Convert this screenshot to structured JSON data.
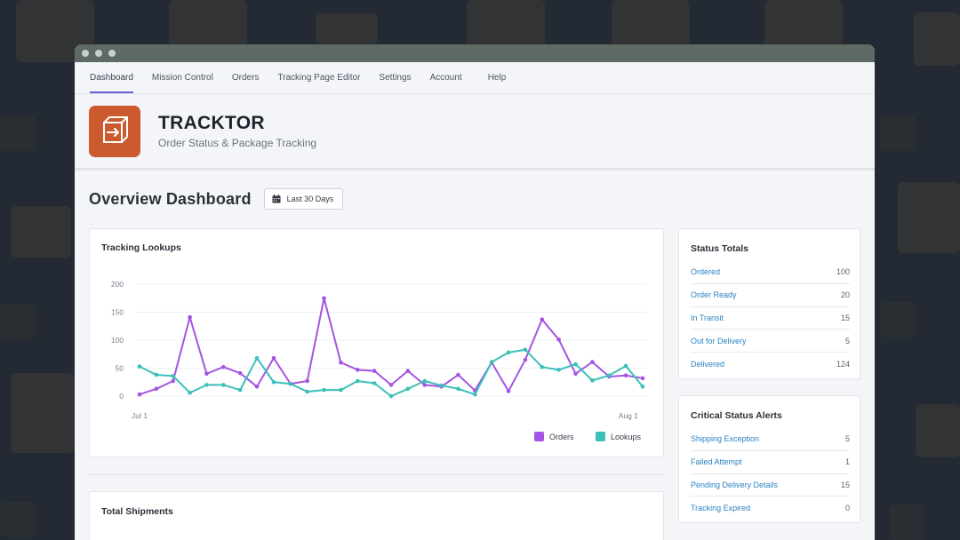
{
  "nav": {
    "items": [
      "Dashboard",
      "Mission Control",
      "Orders",
      "Tracking Page Editor",
      "Settings",
      "Account",
      "Help"
    ],
    "active": "Dashboard"
  },
  "brand": {
    "title": "TRACKTOR",
    "subtitle": "Order Status & Package Tracking",
    "logo_color": "#cc5a2f"
  },
  "overview": {
    "title": "Overview Dashboard",
    "date_range": "Last 30 Days",
    "date_icon": "calendar-icon"
  },
  "tracking_card": {
    "title": "Tracking Lookups"
  },
  "shipments_card": {
    "title": "Total Shipments"
  },
  "status_totals": {
    "title": "Status Totals",
    "rows": [
      {
        "label": "Ordered",
        "value": "100"
      },
      {
        "label": "Order Ready",
        "value": "20"
      },
      {
        "label": "In Transit",
        "value": "15"
      },
      {
        "label": "Out for Delivery",
        "value": "5"
      },
      {
        "label": "Delivered",
        "value": "124"
      }
    ]
  },
  "critical_alerts": {
    "title": "Critical Status Alerts",
    "rows": [
      {
        "label": "Shipping Exception",
        "value": "5"
      },
      {
        "label": "Failed Attempt",
        "value": "1"
      },
      {
        "label": "Pending Delivery Details",
        "value": "15"
      },
      {
        "label": "Tracking Expired",
        "value": "0"
      }
    ]
  },
  "chart_data": {
    "type": "line",
    "title": "Tracking Lookups",
    "xlabel": "",
    "ylabel": "",
    "x_tick_labels": [
      "Jul 1",
      "Aug 1"
    ],
    "y_ticks": [
      0,
      50,
      100,
      150,
      200
    ],
    "ylim": [
      0,
      200
    ],
    "grid": true,
    "legend_position": "bottom-right",
    "series": [
      {
        "name": "Orders",
        "color": "#a554e2",
        "values": [
          3,
          13,
          27,
          141,
          40,
          52,
          41,
          17,
          68,
          22,
          27,
          175,
          60,
          47,
          45,
          20,
          45,
          20,
          17,
          38,
          10,
          60,
          9,
          65,
          137,
          101,
          40,
          61,
          35,
          37,
          32
        ]
      },
      {
        "name": "Lookups",
        "color": "#3ac0b8",
        "values": [
          53,
          38,
          36,
          6,
          20,
          20,
          11,
          68,
          25,
          22,
          8,
          11,
          11,
          27,
          23,
          0,
          13,
          27,
          19,
          13,
          3,
          61,
          78,
          83,
          52,
          47,
          57,
          28,
          37,
          54,
          17
        ]
      }
    ]
  }
}
